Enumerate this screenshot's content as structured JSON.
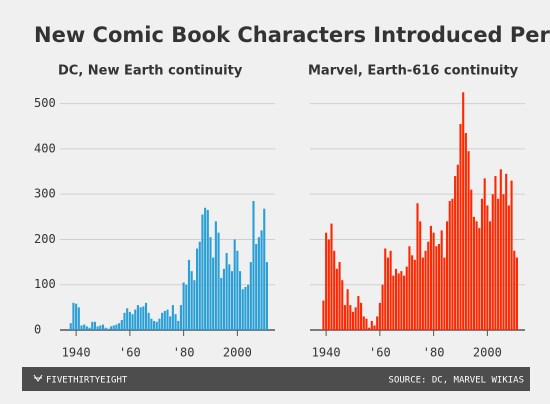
{
  "title": "New Comic Book Characters Introduced Per Year",
  "brand": "FIVETHIRTYEIGHT",
  "source": "SOURCE: DC, MARVEL WIKIAS",
  "chart_data": [
    {
      "type": "bar",
      "title": "DC, New Earth continuity",
      "color": "#2a9fd6",
      "x": [
        1938,
        1939,
        1940,
        1941,
        1942,
        1943,
        1944,
        1945,
        1946,
        1947,
        1948,
        1949,
        1950,
        1951,
        1952,
        1953,
        1954,
        1955,
        1956,
        1957,
        1958,
        1959,
        1960,
        1961,
        1962,
        1963,
        1964,
        1965,
        1966,
        1967,
        1968,
        1969,
        1970,
        1971,
        1972,
        1973,
        1974,
        1975,
        1976,
        1977,
        1978,
        1979,
        1980,
        1981,
        1982,
        1983,
        1984,
        1985,
        1986,
        1987,
        1988,
        1989,
        1990,
        1991,
        1992,
        1993,
        1994,
        1995,
        1996,
        1997,
        1998,
        1999,
        2000,
        2001,
        2002,
        2003,
        2004,
        2005,
        2006,
        2007,
        2008,
        2009,
        2010,
        2011
      ],
      "values": [
        15,
        60,
        58,
        50,
        10,
        12,
        8,
        5,
        18,
        18,
        8,
        10,
        12,
        5,
        3,
        8,
        10,
        12,
        15,
        22,
        38,
        48,
        40,
        35,
        45,
        55,
        50,
        52,
        60,
        38,
        25,
        20,
        18,
        25,
        38,
        42,
        45,
        30,
        55,
        35,
        20,
        55,
        105,
        100,
        155,
        130,
        110,
        180,
        195,
        255,
        270,
        265,
        205,
        160,
        240,
        215,
        115,
        135,
        170,
        145,
        130,
        200,
        175,
        130,
        90,
        95,
        100,
        150,
        285,
        190,
        205,
        220,
        268,
        150
      ],
      "xlim": [
        1934,
        2014
      ],
      "xticks": [
        1940,
        {
          "value": 1960,
          "label": "'60"
        },
        {
          "value": 1980,
          "label": "'80"
        },
        2000
      ],
      "ylim": [
        0,
        550
      ],
      "yticks": [
        0,
        100,
        200,
        300,
        400,
        500
      ],
      "y_labels": true,
      "grid": true
    },
    {
      "type": "bar",
      "title": "Marvel, Earth-616 continuity",
      "color": "#ff2700",
      "x": [
        1939,
        1940,
        1941,
        1942,
        1943,
        1944,
        1945,
        1946,
        1947,
        1948,
        1949,
        1950,
        1951,
        1952,
        1953,
        1954,
        1955,
        1956,
        1957,
        1958,
        1959,
        1960,
        1961,
        1962,
        1963,
        1964,
        1965,
        1966,
        1967,
        1968,
        1969,
        1970,
        1971,
        1972,
        1973,
        1974,
        1975,
        1976,
        1977,
        1978,
        1979,
        1980,
        1981,
        1982,
        1983,
        1984,
        1985,
        1986,
        1987,
        1988,
        1989,
        1990,
        1991,
        1992,
        1993,
        1994,
        1995,
        1996,
        1997,
        1998,
        1999,
        2000,
        2001,
        2002,
        2003,
        2004,
        2005,
        2006,
        2007,
        2008,
        2009,
        2010,
        2011
      ],
      "values": [
        65,
        215,
        200,
        235,
        175,
        135,
        150,
        110,
        55,
        90,
        55,
        40,
        50,
        75,
        60,
        30,
        25,
        5,
        20,
        10,
        30,
        60,
        100,
        180,
        160,
        175,
        120,
        135,
        125,
        130,
        120,
        140,
        185,
        165,
        155,
        280,
        240,
        160,
        175,
        195,
        230,
        215,
        185,
        190,
        220,
        160,
        240,
        285,
        290,
        340,
        365,
        455,
        525,
        435,
        395,
        310,
        250,
        240,
        225,
        290,
        335,
        275,
        240,
        300,
        340,
        290,
        355,
        300,
        345,
        275,
        330,
        175,
        160
      ],
      "xlim": [
        1934,
        2014
      ],
      "xticks": [
        1940,
        {
          "value": 1960,
          "label": "'60"
        },
        {
          "value": 1980,
          "label": "'80"
        },
        2000
      ],
      "ylim": [
        0,
        550
      ],
      "yticks": [
        0,
        100,
        200,
        300,
        400,
        500
      ],
      "y_labels": false,
      "grid": true
    }
  ]
}
